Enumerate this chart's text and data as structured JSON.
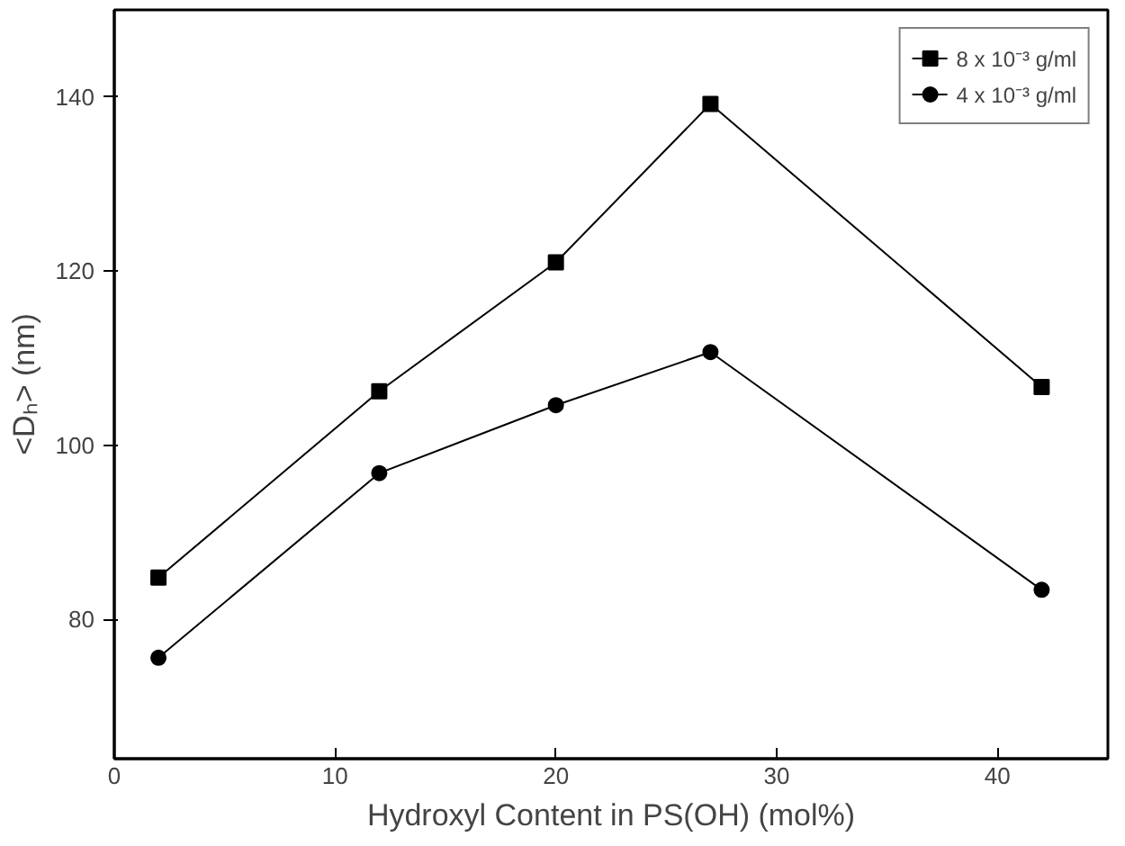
{
  "chart_data": {
    "type": "line",
    "xlabel": "Hydroxyl Content in PS(OH) (mol%)",
    "ylabel": "<Dₕ> (nm)",
    "x": [
      2,
      12,
      20,
      27,
      42
    ],
    "series": [
      {
        "name": "8 x 10⁻³ g/ml",
        "color": "#000000",
        "marker": "square",
        "values": [
          84.8,
          106.2,
          121,
          139.2,
          106.7
        ]
      },
      {
        "name": "4 x 10⁻³ g/ml",
        "color": "#000000",
        "marker": "circle",
        "values": [
          75.6,
          96.8,
          104.6,
          110.7,
          83.4
        ]
      }
    ],
    "xlim": [
      0,
      45
    ],
    "xticks": [
      0,
      10,
      20,
      30,
      40
    ],
    "ylim": [
      64,
      150
    ],
    "yticks": [
      80,
      100,
      120,
      140
    ],
    "grid": false,
    "legend": "top right",
    "line_style": "solid"
  }
}
